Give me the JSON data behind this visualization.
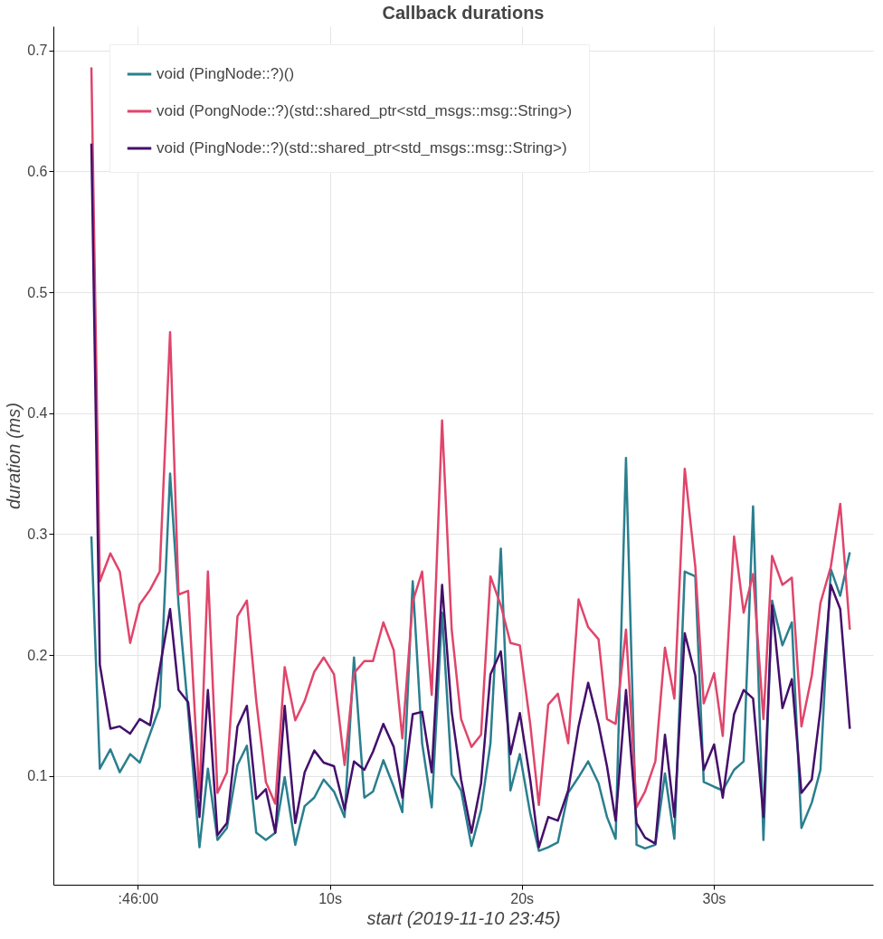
{
  "chart_data": {
    "type": "line",
    "title": "Callback durations",
    "xlabel": "start (2019-11-10 23:45)",
    "ylabel": "duration (ms)",
    "x": [
      -2.42,
      -1.98,
      -1.43,
      -0.94,
      -0.4,
      0.1,
      0.64,
      1.14,
      1.68,
      2.12,
      2.62,
      3.21,
      3.65,
      4.15,
      4.64,
      5.19,
      5.68,
      6.17,
      6.67,
      7.16,
      7.65,
      8.2,
      8.69,
      9.19,
      9.68,
      10.22,
      10.77,
      11.26,
      11.8,
      12.25,
      12.79,
      13.33,
      13.78,
      14.32,
      14.81,
      15.31,
      15.85,
      16.35,
      16.84,
      17.38,
      17.88,
      18.37,
      18.91,
      19.41,
      19.9,
      20.44,
      20.89,
      21.38,
      21.88,
      22.42,
      22.96,
      23.46,
      24.0,
      24.44,
      24.89,
      25.43,
      25.98,
      26.42,
      26.96,
      27.46,
      27.95,
      28.49,
      29.04,
      29.48,
      30.02,
      30.47,
      31.06,
      31.56,
      32.05,
      32.59,
      33.04,
      33.58,
      34.07,
      34.57,
      35.11,
      35.56,
      36.1,
      36.59,
      37.09
    ],
    "series": [
      {
        "name": "void (PingNode::?)()",
        "color": "#2a7f8e",
        "values": [
          0.298,
          0.106,
          0.122,
          0.103,
          0.118,
          0.111,
          0.135,
          0.157,
          0.35,
          0.242,
          0.154,
          0.041,
          0.106,
          0.047,
          0.057,
          0.109,
          0.125,
          0.053,
          0.047,
          0.053,
          0.099,
          0.043,
          0.075,
          0.082,
          0.097,
          0.087,
          0.066,
          0.198,
          0.082,
          0.087,
          0.113,
          0.091,
          0.07,
          0.261,
          0.127,
          0.074,
          0.235,
          0.101,
          0.088,
          0.042,
          0.072,
          0.127,
          0.288,
          0.088,
          0.118,
          0.069,
          0.038,
          0.041,
          0.045,
          0.086,
          0.099,
          0.112,
          0.094,
          0.066,
          0.048,
          0.363,
          0.043,
          0.04,
          0.043,
          0.102,
          0.048,
          0.269,
          0.265,
          0.095,
          0.091,
          0.088,
          0.105,
          0.112,
          0.323,
          0.047,
          0.245,
          0.208,
          0.227,
          0.057,
          0.078,
          0.105,
          0.271,
          0.249,
          0.285
        ]
      },
      {
        "name": "void (PongNode::?)(std::shared_ptr<std_msgs::msg::String>)",
        "color": "#e0456b",
        "values": [
          0.686,
          0.261,
          0.284,
          0.269,
          0.21,
          0.242,
          0.254,
          0.269,
          0.467,
          0.25,
          0.253,
          0.082,
          0.269,
          0.086,
          0.103,
          0.232,
          0.245,
          0.162,
          0.095,
          0.077,
          0.19,
          0.146,
          0.162,
          0.186,
          0.198,
          0.184,
          0.109,
          0.185,
          0.195,
          0.195,
          0.227,
          0.204,
          0.131,
          0.244,
          0.269,
          0.167,
          0.394,
          0.221,
          0.147,
          0.124,
          0.134,
          0.265,
          0.241,
          0.21,
          0.208,
          0.143,
          0.076,
          0.159,
          0.168,
          0.127,
          0.246,
          0.223,
          0.213,
          0.147,
          0.143,
          0.221,
          0.074,
          0.087,
          0.112,
          0.206,
          0.164,
          0.354,
          0.273,
          0.16,
          0.185,
          0.133,
          0.298,
          0.235,
          0.267,
          0.147,
          0.282,
          0.258,
          0.264,
          0.141,
          0.183,
          0.243,
          0.273,
          0.325,
          0.221
        ]
      },
      {
        "name": "void (PingNode::?)(std::shared_ptr<std_msgs::msg::String>)",
        "color": "#440f6b",
        "values": [
          0.623,
          0.192,
          0.139,
          0.141,
          0.135,
          0.147,
          0.142,
          0.189,
          0.238,
          0.171,
          0.161,
          0.066,
          0.171,
          0.051,
          0.061,
          0.141,
          0.158,
          0.081,
          0.089,
          0.053,
          0.158,
          0.061,
          0.103,
          0.121,
          0.111,
          0.108,
          0.072,
          0.112,
          0.105,
          0.12,
          0.143,
          0.124,
          0.082,
          0.151,
          0.153,
          0.103,
          0.258,
          0.153,
          0.097,
          0.053,
          0.094,
          0.184,
          0.203,
          0.118,
          0.152,
          0.097,
          0.041,
          0.066,
          0.063,
          0.088,
          0.141,
          0.177,
          0.143,
          0.108,
          0.063,
          0.171,
          0.061,
          0.049,
          0.044,
          0.134,
          0.066,
          0.218,
          0.183,
          0.105,
          0.126,
          0.082,
          0.151,
          0.171,
          0.164,
          0.066,
          0.241,
          0.156,
          0.18,
          0.086,
          0.097,
          0.155,
          0.258,
          0.238,
          0.139
        ]
      }
    ],
    "xlim": [
      -4.4,
      38.3
    ],
    "xticks": [
      {
        "value": 0,
        "label": ":46:00"
      },
      {
        "value": 10,
        "label": "10s"
      },
      {
        "value": 20,
        "label": "20s"
      },
      {
        "value": 30,
        "label": "30s"
      }
    ],
    "ylim": [
      0.01,
      0.72
    ],
    "yticks": [
      0.1,
      0.2,
      0.3,
      0.4,
      0.5,
      0.6,
      0.7
    ],
    "grid": true,
    "legend": "top left",
    "line_style": "solid",
    "marker": "none"
  }
}
